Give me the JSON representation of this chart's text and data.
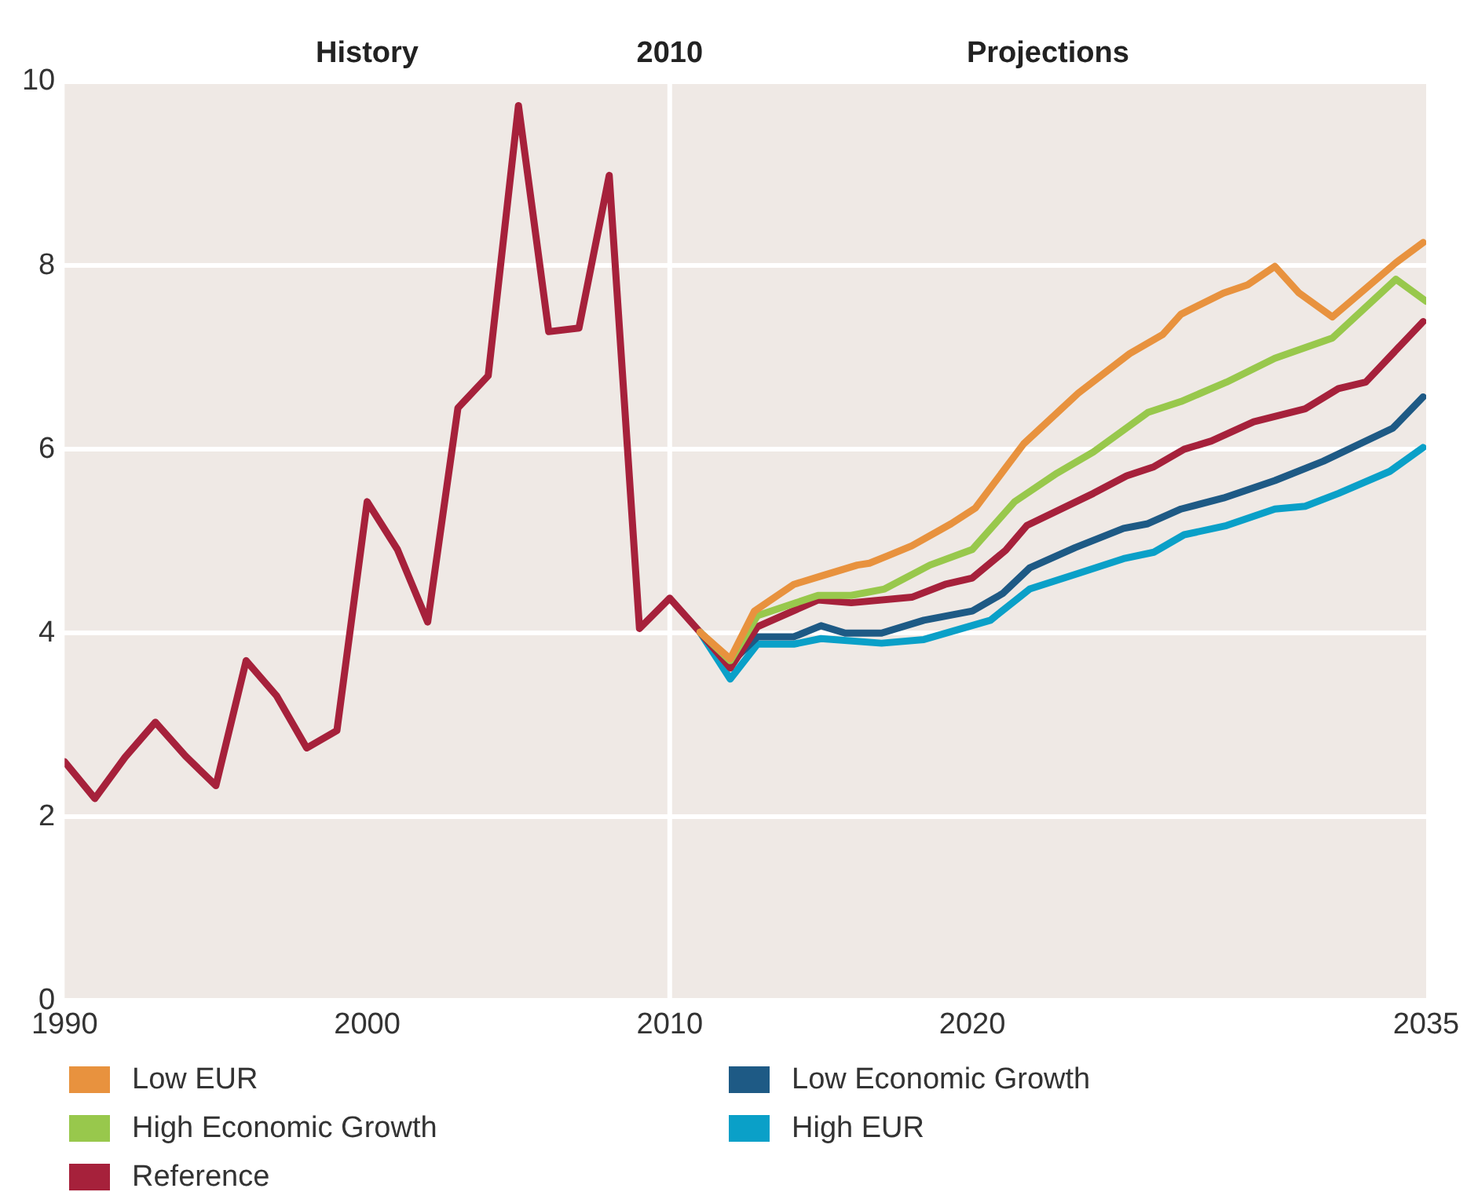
{
  "chart_data": {
    "type": "line",
    "xlim": [
      1990,
      2035
    ],
    "xticks": [
      1990,
      2000,
      2010,
      2020,
      2035
    ],
    "ylim": [
      0,
      10
    ],
    "yticks": [
      0,
      2,
      4,
      6,
      8,
      10
    ],
    "grid": "y",
    "legend": "bottom",
    "marker": "none",
    "line_style": "solid",
    "ref_lines": [
      {
        "axis": "x",
        "value": 2010,
        "label": "2010",
        "color": "#ffffff"
      }
    ],
    "annotations": [
      "History",
      "Projections"
    ],
    "series": [
      {
        "name": "Low EUR",
        "color": "#e8923e",
        "x": [
          2011,
          2012,
          2012.8,
          2014.1,
          2015,
          2016.2,
          2016.6,
          2017.2,
          2018,
          2019.3,
          2020.1,
          2021.7,
          2023.5,
          2025.2,
          2026.3,
          2026.9,
          2028.3,
          2029.1,
          2030,
          2030.8,
          2031.9,
          2034,
          2034.9
        ],
        "values": [
          4.01,
          3.72,
          4.24,
          4.53,
          4.62,
          4.74,
          4.76,
          4.84,
          4.95,
          5.19,
          5.36,
          6.06,
          6.61,
          7.04,
          7.25,
          7.47,
          7.7,
          7.79,
          7.99,
          7.7,
          7.44,
          8.03,
          8.25
        ]
      },
      {
        "name": "High Economic Growth",
        "color": "#98c84c",
        "x": [
          2011,
          2012,
          2012.9,
          2014.9,
          2016,
          2017.1,
          2018.6,
          2020,
          2021.4,
          2022.8,
          2024,
          2025.8,
          2026.9,
          2028.4,
          2030,
          2031.9,
          2034,
          2035
        ],
        "values": [
          4.01,
          3.7,
          4.19,
          4.41,
          4.41,
          4.48,
          4.74,
          4.91,
          5.43,
          5.74,
          5.97,
          6.4,
          6.52,
          6.73,
          6.99,
          7.21,
          7.85,
          7.61
        ]
      },
      {
        "name": "Reference",
        "color": "#a6213b",
        "x": [
          1990,
          1991,
          1992,
          1993,
          1994,
          1995,
          1996,
          1997,
          1998,
          1999,
          2000,
          2001,
          2002,
          2003,
          2004,
          2005,
          2006,
          2007,
          2008,
          2009,
          2010,
          2011,
          2012,
          2012.9,
          2014.9,
          2016,
          2018,
          2019.1,
          2020,
          2021.1,
          2021.8,
          2024,
          2025.1,
          2026,
          2027,
          2027.9,
          2029.3,
          2031,
          2032.1,
          2033,
          2034.9
        ],
        "values": [
          2.6,
          2.2,
          2.65,
          3.03,
          2.66,
          2.34,
          3.7,
          3.32,
          2.75,
          2.94,
          5.43,
          4.91,
          4.12,
          6.45,
          6.8,
          9.74,
          7.28,
          7.32,
          8.98,
          4.05,
          4.38,
          4.01,
          3.62,
          4.07,
          4.36,
          4.33,
          4.39,
          4.53,
          4.6,
          4.9,
          5.17,
          5.52,
          5.71,
          5.81,
          6.0,
          6.09,
          6.3,
          6.44,
          6.66,
          6.73,
          7.39
        ]
      },
      {
        "name": "Low Economic Growth",
        "color": "#1e5a85",
        "x": [
          2011,
          2012,
          2012.9,
          2014.1,
          2015,
          2015.8,
          2017,
          2018.4,
          2020,
          2021,
          2021.9,
          2023.4,
          2025,
          2025.8,
          2026.9,
          2028.3,
          2030,
          2031.6,
          2033.9,
          2034.9
        ],
        "values": [
          4.01,
          3.67,
          3.96,
          3.96,
          4.08,
          4.0,
          4.0,
          4.14,
          4.24,
          4.43,
          4.71,
          4.93,
          5.14,
          5.19,
          5.35,
          5.47,
          5.66,
          5.87,
          6.23,
          6.57
        ]
      },
      {
        "name": "High EUR",
        "color": "#0aa0c8",
        "x": [
          2011,
          2012,
          2012.9,
          2014.1,
          2015,
          2017,
          2018.4,
          2020.6,
          2021.9,
          2023.5,
          2025,
          2026,
          2027,
          2028.4,
          2030,
          2031,
          2032.1,
          2033.8,
          2034.9
        ],
        "values": [
          4.01,
          3.5,
          3.88,
          3.88,
          3.94,
          3.89,
          3.93,
          4.14,
          4.48,
          4.65,
          4.81,
          4.88,
          5.07,
          5.17,
          5.35,
          5.38,
          5.52,
          5.76,
          6.02
        ]
      }
    ]
  }
}
